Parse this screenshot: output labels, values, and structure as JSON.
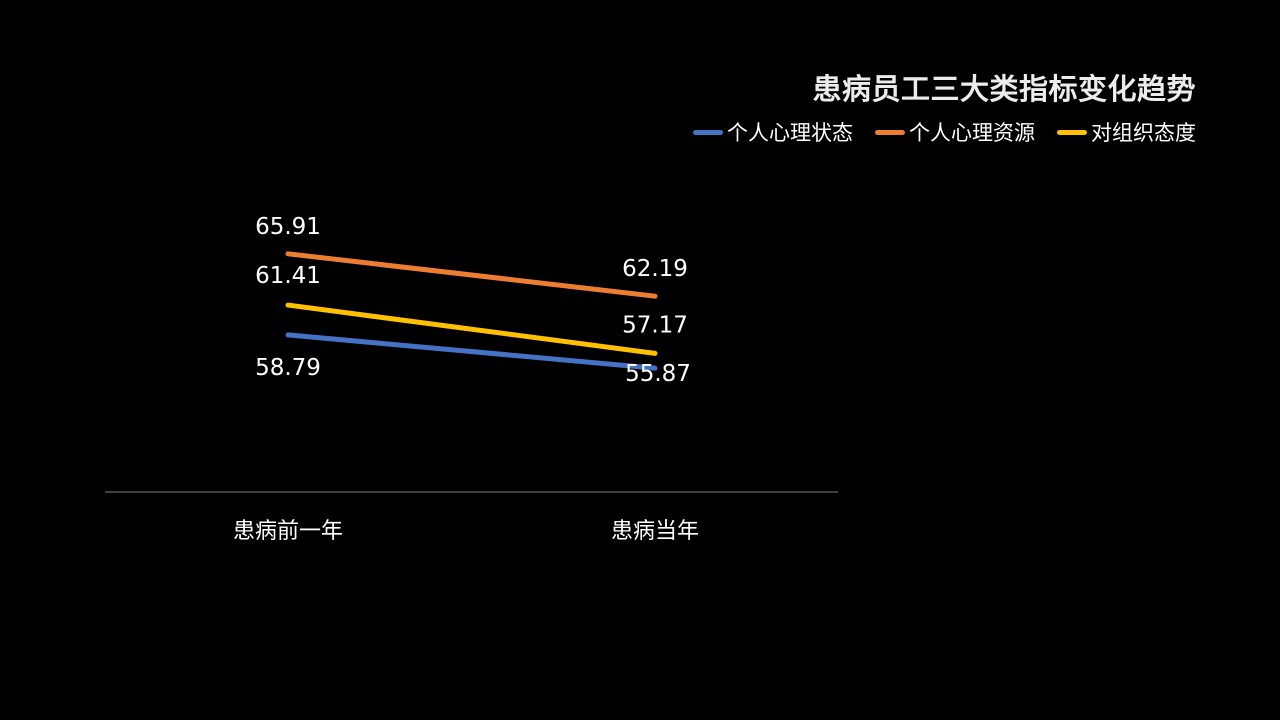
{
  "chart_data": {
    "type": "line",
    "title": "患病员工三大类指标变化趋势",
    "categories": [
      "患病前一年",
      "患病当年"
    ],
    "series": [
      {
        "name": "个人心理状态",
        "values": [
          58.79,
          55.87
        ],
        "color": "#4472C4"
      },
      {
        "name": "个人心理资源",
        "values": [
          65.91,
          62.19
        ],
        "color": "#ED7D31"
      },
      {
        "name": "对组织态度",
        "values": [
          61.41,
          57.17
        ],
        "color": "#FFC000"
      }
    ],
    "ylim": [
      45,
      68
    ],
    "grid": false,
    "legend_position": "top-right",
    "axis_color": "#7f7f7f"
  }
}
